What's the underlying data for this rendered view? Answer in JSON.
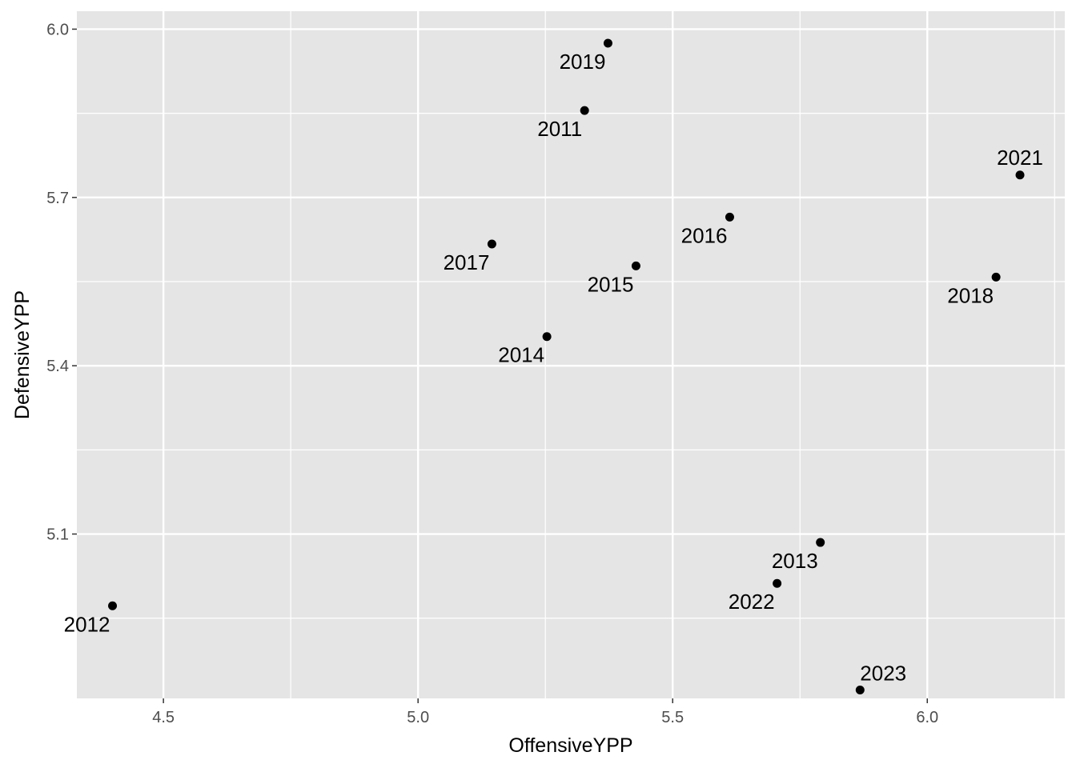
{
  "chart_data": {
    "type": "scatter",
    "title": "",
    "xlabel": "OffensiveYPP",
    "ylabel": "DefensiveYPP",
    "xlim": [
      4.33,
      6.27
    ],
    "ylim": [
      4.807,
      6.032
    ],
    "x_ticks": [
      4.5,
      5.0,
      5.5,
      6.0
    ],
    "x_tick_labels": [
      "4.5",
      "5.0",
      "5.5",
      "6.0"
    ],
    "y_ticks": [
      5.1,
      5.4,
      5.7,
      6.0
    ],
    "y_tick_labels": [
      "5.1",
      "5.4",
      "5.7",
      "6.0"
    ],
    "grid": true,
    "point_color": "#000000",
    "panel_color": "#e5e5e5",
    "grid_color": "#ffffff",
    "points": [
      {
        "label": "2011",
        "x": 5.327,
        "y": 5.855,
        "label_pos": "below-left"
      },
      {
        "label": "2012",
        "x": 4.4,
        "y": 4.972,
        "label_pos": "below-left"
      },
      {
        "label": "2013",
        "x": 5.79,
        "y": 5.085,
        "label_pos": "below-left"
      },
      {
        "label": "2014",
        "x": 5.253,
        "y": 5.452,
        "label_pos": "below-left"
      },
      {
        "label": "2015",
        "x": 5.428,
        "y": 5.578,
        "label_pos": "below-left"
      },
      {
        "label": "2016",
        "x": 5.612,
        "y": 5.665,
        "label_pos": "below-left"
      },
      {
        "label": "2017",
        "x": 5.145,
        "y": 5.617,
        "label_pos": "below-left"
      },
      {
        "label": "2018",
        "x": 6.135,
        "y": 5.558,
        "label_pos": "below-left"
      },
      {
        "label": "2019",
        "x": 5.373,
        "y": 5.975,
        "label_pos": "below-left"
      },
      {
        "label": "2021",
        "x": 6.182,
        "y": 5.74,
        "label_pos": "above"
      },
      {
        "label": "2022",
        "x": 5.705,
        "y": 5.012,
        "label_pos": "below-left"
      },
      {
        "label": "2023",
        "x": 5.868,
        "y": 4.822,
        "label_pos": "above-right"
      }
    ]
  }
}
